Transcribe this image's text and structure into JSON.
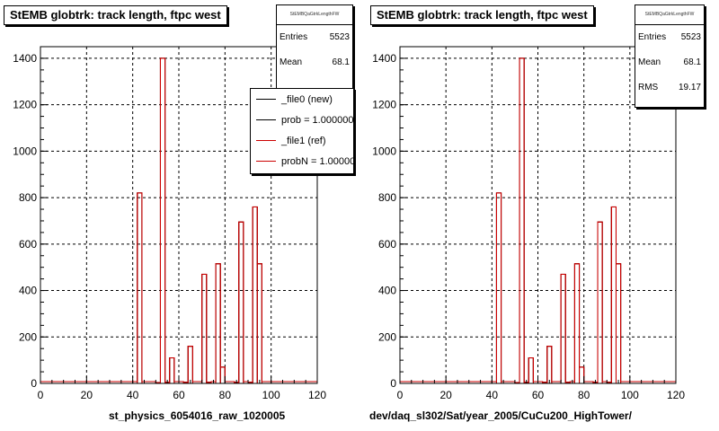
{
  "colors": {
    "new": "#000000",
    "ref": "#cc0000",
    "grid": "#000000"
  },
  "panels": [
    {
      "title": "StEMB globtrk: track length, ftpc west",
      "stats_name": "StEMBQaGtrkLengthFW",
      "stats": [
        {
          "label": "Entries",
          "value": "5523"
        },
        {
          "label": "Mean",
          "value": "68.1"
        }
      ],
      "legend": [
        {
          "label": "_file0 (new)",
          "color": "#000000"
        },
        {
          "label": "prob = 1.000000",
          "color": "#000000"
        },
        {
          "label": "_file1 (ref)",
          "color": "#cc0000"
        },
        {
          "label": "probN = 1.000000",
          "color": "#cc0000"
        }
      ],
      "xcaption": "st_physics_6054016_raw_1020005"
    },
    {
      "title": "StEMB globtrk: track length, ftpc west",
      "stats_name": "StEMBQaGtrkLengthFW",
      "stats": [
        {
          "label": "Entries",
          "value": "5523"
        },
        {
          "label": "Mean",
          "value": "68.1"
        },
        {
          "label": "RMS",
          "value": "19.17"
        }
      ],
      "legend": [],
      "xcaption": "dev/daq_sl302/Sat/year_2005/CuCu200_HighTower/"
    }
  ],
  "chart_data": {
    "type": "bar",
    "title": "StEMB globtrk: track length, ftpc west",
    "xlim": [
      0,
      120
    ],
    "ylim": [
      0,
      1450
    ],
    "xticks": [
      0,
      20,
      40,
      60,
      80,
      100,
      120
    ],
    "yticks": [
      0,
      200,
      400,
      600,
      800,
      1000,
      1200,
      1400
    ],
    "grid": true,
    "bin_width": 2,
    "series": [
      {
        "name": "_file0 (new)",
        "bin_lo": [
          42,
          50,
          52,
          54,
          56,
          62,
          64,
          70,
          72,
          76,
          78,
          84,
          86,
          90,
          92,
          94
        ],
        "values": [
          820,
          4,
          1400,
          5,
          110,
          5,
          160,
          470,
          5,
          515,
          70,
          5,
          695,
          5,
          760,
          515
        ]
      },
      {
        "name": "_file1 (ref)",
        "bin_lo": [
          42,
          50,
          52,
          54,
          56,
          62,
          64,
          70,
          72,
          76,
          78,
          84,
          86,
          90,
          92,
          94
        ],
        "values": [
          820,
          4,
          1400,
          5,
          110,
          5,
          160,
          470,
          5,
          515,
          70,
          5,
          695,
          5,
          760,
          515
        ]
      }
    ]
  }
}
